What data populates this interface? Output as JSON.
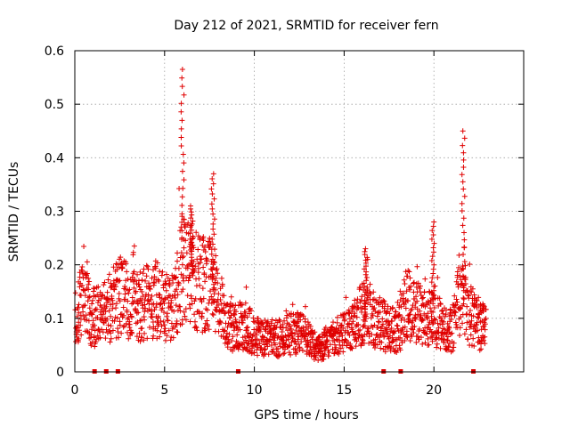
{
  "chart_data": {
    "type": "scatter",
    "title": "Day 212 of 2021, SRMTID for receiver fern",
    "xlabel": "GPS time / hours",
    "ylabel": "SRMTID / TECUs",
    "xlim": [
      0,
      25
    ],
    "ylim": [
      0,
      0.6
    ],
    "x_ticks": [
      0,
      5,
      10,
      15,
      20
    ],
    "x_tick_labels": [
      "0",
      "5",
      "10",
      "15",
      "20"
    ],
    "y_ticks": [
      0,
      0.1,
      0.2,
      0.3,
      0.4,
      0.5,
      0.6
    ],
    "y_tick_labels": [
      "0",
      "0.1",
      "0.2",
      "0.3",
      "0.4",
      "0.5",
      "0.6"
    ],
    "grid": true,
    "marker": "plus",
    "series_color": "#e00000",
    "baseline_marker_x": [
      1.1,
      1.75,
      2.4,
      9.1,
      17.2,
      18.15,
      22.2
    ],
    "trend": [
      [
        0.0,
        0.11
      ],
      [
        0.5,
        0.13
      ],
      [
        1.0,
        0.1
      ],
      [
        1.5,
        0.11
      ],
      [
        2.0,
        0.12
      ],
      [
        2.5,
        0.14
      ],
      [
        3.0,
        0.13
      ],
      [
        3.5,
        0.12
      ],
      [
        4.0,
        0.13
      ],
      [
        4.5,
        0.14
      ],
      [
        5.0,
        0.12
      ],
      [
        5.5,
        0.13
      ],
      [
        6.0,
        0.2
      ],
      [
        6.5,
        0.18
      ],
      [
        7.0,
        0.16
      ],
      [
        7.5,
        0.17
      ],
      [
        8.0,
        0.13
      ],
      [
        8.5,
        0.09
      ],
      [
        9.0,
        0.08
      ],
      [
        9.5,
        0.09
      ],
      [
        10.0,
        0.07
      ],
      [
        10.5,
        0.065
      ],
      [
        11.0,
        0.06
      ],
      [
        11.5,
        0.065
      ],
      [
        12.0,
        0.07
      ],
      [
        12.5,
        0.075
      ],
      [
        13.0,
        0.06
      ],
      [
        13.5,
        0.045
      ],
      [
        14.0,
        0.055
      ],
      [
        14.5,
        0.065
      ],
      [
        15.0,
        0.07
      ],
      [
        15.5,
        0.08
      ],
      [
        16.0,
        0.11
      ],
      [
        16.5,
        0.1
      ],
      [
        17.0,
        0.09
      ],
      [
        17.5,
        0.08
      ],
      [
        18.0,
        0.075
      ],
      [
        18.5,
        0.13
      ],
      [
        19.0,
        0.11
      ],
      [
        19.5,
        0.1
      ],
      [
        20.0,
        0.095
      ],
      [
        20.5,
        0.085
      ],
      [
        21.0,
        0.08
      ],
      [
        21.5,
        0.15
      ],
      [
        22.0,
        0.11
      ],
      [
        22.5,
        0.085
      ],
      [
        22.9,
        0.08
      ]
    ],
    "peaks": [
      {
        "x": 6.0,
        "y": 0.565
      },
      {
        "x": 6.5,
        "y": 0.31
      },
      {
        "x": 7.7,
        "y": 0.37
      },
      {
        "x": 16.2,
        "y": 0.23
      },
      {
        "x": 19.95,
        "y": 0.28
      },
      {
        "x": 21.65,
        "y": 0.45
      }
    ]
  }
}
